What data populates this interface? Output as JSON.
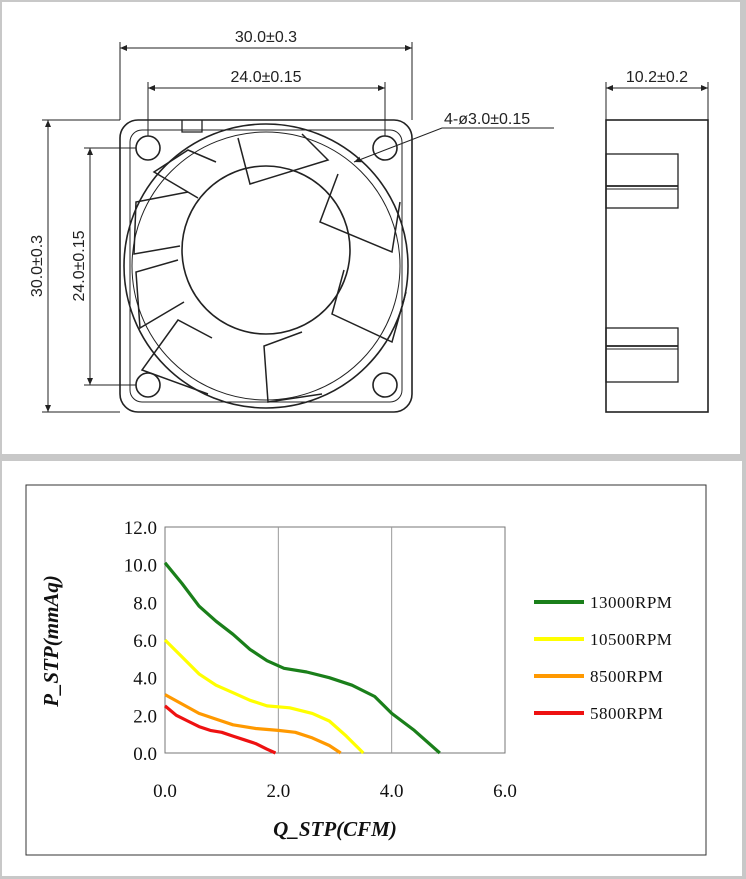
{
  "drawing": {
    "front_width_label": "30.0±0.3",
    "hole_spacing_h_label": "24.0±0.15",
    "front_height_label": "30.0±0.3",
    "hole_spacing_v_label": "24.0±0.15",
    "holes_label": "4-ø3.0±0.15",
    "depth_label": "10.2±0.2"
  },
  "chart_data": {
    "type": "line",
    "title": "",
    "xlabel": "Q_STP(CFM)",
    "ylabel": "P_STP(mmAq)",
    "xlim": [
      0,
      6
    ],
    "ylim": [
      0,
      12
    ],
    "x_ticks": [
      "0.0",
      "2.0",
      "4.0",
      "6.0"
    ],
    "y_ticks": [
      "0.0",
      "2.0",
      "4.0",
      "6.0",
      "8.0",
      "10.0",
      "12.0"
    ],
    "grid": true,
    "legend_position": "right",
    "series": [
      {
        "name": "13000RPM",
        "color": "#1a7f1a",
        "x": [
          0,
          0.3,
          0.6,
          0.9,
          1.2,
          1.5,
          1.8,
          2.1,
          2.5,
          2.9,
          3.3,
          3.7,
          4.0,
          4.4,
          4.85
        ],
        "y": [
          10.1,
          9.0,
          7.8,
          7.0,
          6.3,
          5.5,
          4.9,
          4.5,
          4.3,
          4.0,
          3.6,
          3.0,
          2.1,
          1.2,
          0.0
        ]
      },
      {
        "name": "10500RPM",
        "color": "#ffff00",
        "x": [
          0,
          0.3,
          0.6,
          0.9,
          1.2,
          1.5,
          1.8,
          2.2,
          2.6,
          2.9,
          3.2,
          3.5
        ],
        "y": [
          6.0,
          5.1,
          4.2,
          3.6,
          3.2,
          2.8,
          2.5,
          2.4,
          2.1,
          1.7,
          0.9,
          0.0
        ]
      },
      {
        "name": "8500RPM",
        "color": "#ff9900",
        "x": [
          0,
          0.3,
          0.6,
          0.9,
          1.2,
          1.6,
          2.0,
          2.3,
          2.6,
          2.9,
          3.1
        ],
        "y": [
          3.1,
          2.6,
          2.1,
          1.8,
          1.5,
          1.3,
          1.2,
          1.1,
          0.8,
          0.4,
          0.0
        ]
      },
      {
        "name": "5800RPM",
        "color": "#ee1111",
        "x": [
          0,
          0.2,
          0.4,
          0.6,
          0.8,
          1.0,
          1.2,
          1.4,
          1.6,
          1.8,
          1.95
        ],
        "y": [
          2.5,
          2.0,
          1.7,
          1.4,
          1.2,
          1.1,
          0.9,
          0.7,
          0.5,
          0.2,
          0.0
        ]
      }
    ]
  }
}
